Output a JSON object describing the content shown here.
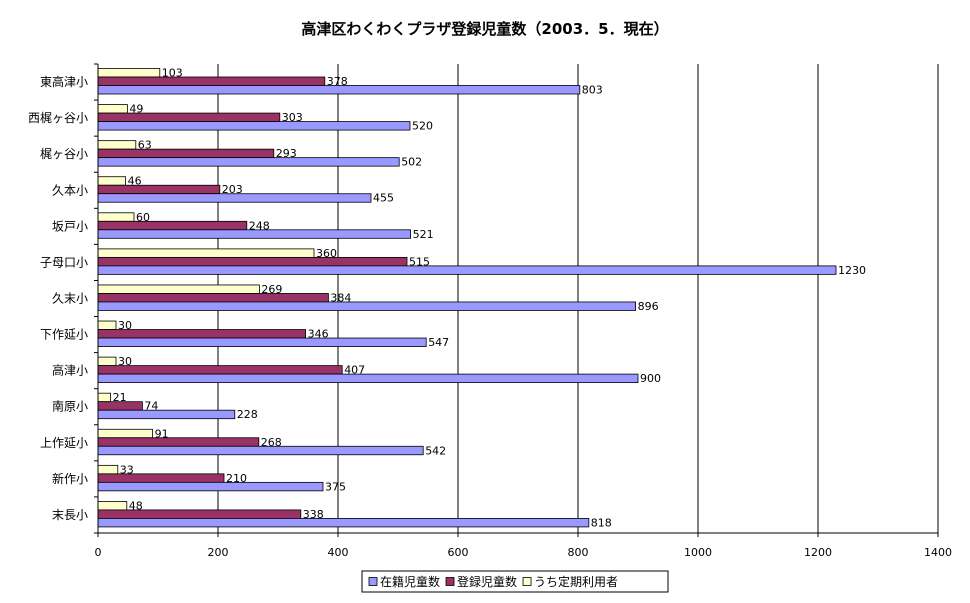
{
  "chart_data": {
    "type": "bar",
    "orientation": "horizontal",
    "title": "高津区わくわくプラザ登録児童数（2003．5．現在）",
    "xlabel": "",
    "ylabel": "",
    "xlim": [
      0,
      1400
    ],
    "x_ticks": [
      0,
      200,
      400,
      600,
      800,
      1000,
      1200,
      1400
    ],
    "x_tick_labels": [
      "0",
      "200",
      "400",
      "600",
      "800",
      "1000",
      "1200",
      "1400"
    ],
    "grid": "vertical",
    "legend_position": "bottom",
    "categories": [
      "東高津小",
      "西梶ヶ谷小",
      "梶ヶ谷小",
      "久本小",
      "坂戸小",
      "子母口小",
      "久末小",
      "下作延小",
      "高津小",
      "南原小",
      "上作延小",
      "新作小",
      "末長小"
    ],
    "series": [
      {
        "name": "在籍児童数",
        "color": "#9999ff",
        "values": [
          803,
          520,
          502,
          455,
          521,
          1230,
          896,
          547,
          900,
          228,
          542,
          375,
          818
        ],
        "value_labels": [
          "803",
          "520",
          "502",
          "455",
          "521",
          "1230",
          "896",
          "547",
          "900",
          "228",
          "542",
          "375",
          "818"
        ]
      },
      {
        "name": "登録児童数",
        "color": "#993366",
        "values": [
          378,
          303,
          293,
          203,
          248,
          515,
          384,
          346,
          407,
          74,
          268,
          210,
          338
        ],
        "value_labels": [
          "378",
          "303",
          "293",
          "203",
          "248",
          "515",
          "384",
          "346",
          "407",
          "74",
          "268",
          "210",
          "338"
        ]
      },
      {
        "name": "うち定期利用者",
        "color": "#ffffcc",
        "values": [
          103,
          49,
          63,
          46,
          60,
          360,
          269,
          30,
          30,
          21,
          91,
          33,
          48
        ],
        "value_labels": [
          "103",
          "49",
          "63",
          "46",
          "60",
          "360",
          "269",
          "30",
          "30",
          "21",
          "91",
          "33",
          "48"
        ]
      }
    ]
  }
}
